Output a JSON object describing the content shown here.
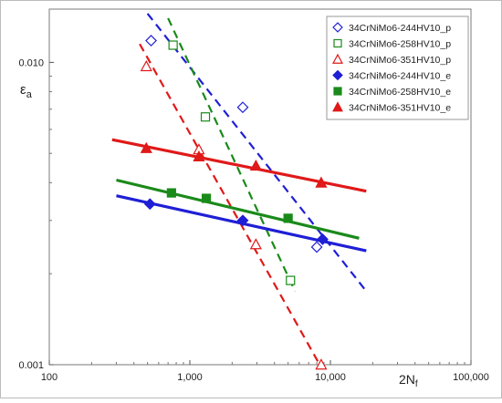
{
  "chart_data": {
    "type": "scatter",
    "title": "",
    "xlabel": "2N",
    "xlabel_sub": "f",
    "ylabel": "ε",
    "ylabel_sub": "a",
    "x_scale": "log",
    "y_scale": "log",
    "xlim": [
      100,
      100000
    ],
    "ylim": [
      0.001,
      0.015
    ],
    "x_ticks": [
      100,
      1000,
      10000,
      100000
    ],
    "x_tick_labels": [
      "100",
      "1,000",
      "10,000",
      "100,000"
    ],
    "y_ticks": [
      0.001,
      0.01
    ],
    "y_tick_labels": [
      "0.001",
      "0.010"
    ],
    "grid": false,
    "legend_position": "top-right",
    "series": [
      {
        "name": "34CrNiMo6-244HV10_p",
        "color": "#1f1fd6",
        "marker": "diamond",
        "filled": false,
        "points": [
          [
            530,
            0.0118
          ],
          [
            2380,
            0.0071
          ],
          [
            8000,
            0.00245
          ]
        ],
        "fit": {
          "x": [
            500,
            18000
          ],
          "y": [
            0.0145,
            0.00175
          ],
          "dash": true
        }
      },
      {
        "name": "34CrNiMo6-258HV10_p",
        "color": "#1a8a1a",
        "marker": "square",
        "filled": false,
        "points": [
          [
            760,
            0.0114
          ],
          [
            1290,
            0.0066
          ],
          [
            5200,
            0.0019
          ]
        ],
        "fit": {
          "x": [
            700,
            5600
          ],
          "y": [
            0.014,
            0.00175
          ],
          "dash": true
        }
      },
      {
        "name": "34CrNiMo6-351HV10_p",
        "color": "#e01919",
        "marker": "triangle",
        "filled": false,
        "points": [
          [
            490,
            0.0097
          ],
          [
            1160,
            0.00515
          ],
          [
            2950,
            0.0025
          ],
          [
            8600,
            0.001
          ]
        ],
        "fit": {
          "x": [
            440,
            8600
          ],
          "y": [
            0.0115,
            0.00098
          ],
          "dash": true
        }
      },
      {
        "name": "34CrNiMo6-244HV10_e",
        "color": "#1f1fd6",
        "marker": "diamond",
        "filled": true,
        "points": [
          [
            520,
            0.0034
          ],
          [
            2380,
            0.003
          ],
          [
            8800,
            0.0026
          ]
        ],
        "fit": {
          "x": [
            300,
            18000
          ],
          "y": [
            0.00362,
            0.00238
          ],
          "dash": false
        }
      },
      {
        "name": "34CrNiMo6-258HV10_e",
        "color": "#1a8a1a",
        "marker": "square",
        "filled": true,
        "points": [
          [
            740,
            0.0037
          ],
          [
            1310,
            0.00355
          ],
          [
            5000,
            0.00305
          ]
        ],
        "fit": {
          "x": [
            300,
            16000
          ],
          "y": [
            0.00408,
            0.00262
          ],
          "dash": false
        }
      },
      {
        "name": "34CrNiMo6-351HV10_e",
        "color": "#e01919",
        "marker": "triangle",
        "filled": true,
        "points": [
          [
            490,
            0.0052
          ],
          [
            1160,
            0.00488
          ],
          [
            2950,
            0.00455
          ],
          [
            8600,
            0.004
          ]
        ],
        "fit": {
          "x": [
            280,
            18000
          ],
          "y": [
            0.00555,
            0.00375
          ],
          "dash": false
        }
      }
    ]
  }
}
